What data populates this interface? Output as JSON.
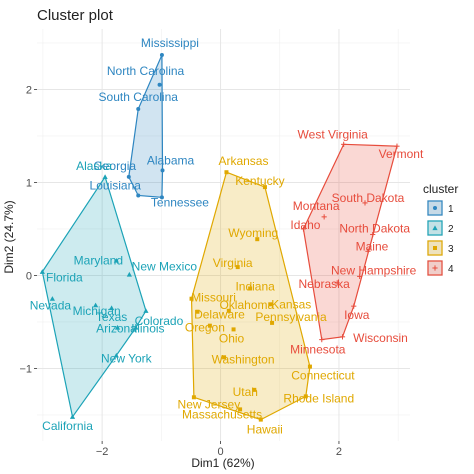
{
  "chart_data": {
    "type": "scatter",
    "title": "Cluster plot",
    "xlabel": "Dim1 (62%)",
    "ylabel": "Dim2 (24.7%)",
    "xlim": [
      -3.1,
      3.2
    ],
    "ylim": [
      -1.78,
      2.65
    ],
    "x_ticks": [
      -2,
      0,
      2
    ],
    "y_ticks": [
      -1,
      0,
      1,
      2
    ],
    "grid": true,
    "legend": {
      "title": "cluster",
      "position": "right"
    },
    "series": [
      {
        "name": "1",
        "color": "#2E86C1",
        "points": [
          {
            "label": "Mississippi",
            "x": -0.99,
            "y": 2.37
          },
          {
            "label": "North Carolina",
            "x": -1.03,
            "y": 2.05
          },
          {
            "label": "South Carolina",
            "x": -1.39,
            "y": 1.79
          },
          {
            "label": "Georgia",
            "x": -1.55,
            "y": 1.06
          },
          {
            "label": "Alabama",
            "x": -0.98,
            "y": 1.13
          },
          {
            "label": "Louisiana",
            "x": -1.39,
            "y": 0.86
          },
          {
            "label": "Tennessee",
            "x": -0.99,
            "y": 0.84
          }
        ]
      },
      {
        "name": "2",
        "color": "#1CA3B7",
        "points": [
          {
            "label": "Alaska",
            "x": -1.95,
            "y": 1.06
          },
          {
            "label": "Maryland",
            "x": -1.76,
            "y": 0.16
          },
          {
            "label": "New Mexico",
            "x": -1.54,
            "y": 0.01
          },
          {
            "label": "Florida",
            "x": -3.01,
            "y": 0.04
          },
          {
            "label": "Michigan",
            "x": -2.11,
            "y": -0.32
          },
          {
            "label": "Texas",
            "x": -1.84,
            "y": -0.35
          },
          {
            "label": "Arizona",
            "x": -1.74,
            "y": -0.56
          },
          {
            "label": "Illinois",
            "x": -1.43,
            "y": -0.56
          },
          {
            "label": "Nevada",
            "x": -2.84,
            "y": -0.25
          },
          {
            "label": "New York",
            "x": -1.76,
            "y": -0.86
          },
          {
            "label": "Colorado",
            "x": -1.26,
            "y": -0.38
          },
          {
            "label": "California",
            "x": -2.5,
            "y": -1.52
          }
        ]
      },
      {
        "name": "3",
        "color": "#E0A800",
        "points": [
          {
            "label": "Arkansas",
            "x": 0.1,
            "y": 1.11
          },
          {
            "label": "Kentucky",
            "x": 0.75,
            "y": 0.95
          },
          {
            "label": "Wyoming",
            "x": 0.62,
            "y": 0.39
          },
          {
            "label": "Virginia",
            "x": 0.29,
            "y": 0.09
          },
          {
            "label": "Missouri",
            "x": -0.49,
            "y": -0.25
          },
          {
            "label": "Indiana",
            "x": 0.5,
            "y": -0.14
          },
          {
            "label": "Kansas",
            "x": 0.84,
            "y": -0.31
          },
          {
            "label": "Delaware",
            "x": -0.39,
            "y": -0.39
          },
          {
            "label": "Oklahoma",
            "x": 0.14,
            "y": -0.38
          },
          {
            "label": "Pennsylvania",
            "x": 0.87,
            "y": -0.51
          },
          {
            "label": "Oregon",
            "x": -0.18,
            "y": -0.54
          },
          {
            "label": "Ohio",
            "x": 0.22,
            "y": -0.58
          },
          {
            "label": "Washington",
            "x": 0.06,
            "y": -0.88
          },
          {
            "label": "Connecticut",
            "x": 1.51,
            "y": -0.98
          },
          {
            "label": "New Jersey",
            "x": -0.45,
            "y": -1.31
          },
          {
            "label": "Utah",
            "x": 0.57,
            "y": -1.23
          },
          {
            "label": "Rhode Island",
            "x": 1.44,
            "y": -1.3
          },
          {
            "label": "Massachusetts",
            "x": 0.33,
            "y": -1.44
          },
          {
            "label": "Hawaii",
            "x": 0.68,
            "y": -1.55
          }
        ]
      },
      {
        "name": "4",
        "color": "#E74C3C",
        "points": [
          {
            "label": "West Virginia",
            "x": 2.08,
            "y": 1.41
          },
          {
            "label": "Vermont",
            "x": 2.98,
            "y": 1.39
          },
          {
            "label": "South Dakota",
            "x": 2.44,
            "y": 0.78
          },
          {
            "label": "Montana",
            "x": 1.75,
            "y": 0.63
          },
          {
            "label": "North Dakota",
            "x": 2.57,
            "y": 0.44
          },
          {
            "label": "Idaho",
            "x": 1.4,
            "y": 0.5
          },
          {
            "label": "Maine",
            "x": 2.49,
            "y": 0.26
          },
          {
            "label": "New Hampshire",
            "x": 2.35,
            "y": -0.01
          },
          {
            "label": "Nebraska",
            "x": 1.97,
            "y": -0.08
          },
          {
            "label": "Iowa",
            "x": 2.25,
            "y": -0.33
          },
          {
            "label": "Wisconsin",
            "x": 2.06,
            "y": -0.66
          },
          {
            "label": "Minnesota",
            "x": 1.71,
            "y": -0.69
          }
        ]
      }
    ]
  }
}
